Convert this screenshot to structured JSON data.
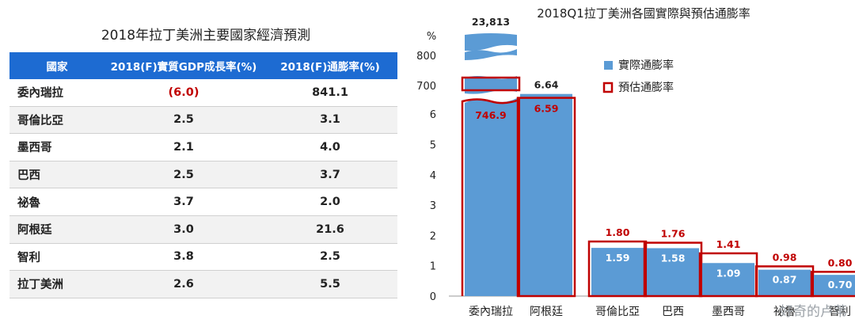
{
  "left_table": {
    "title": "2018年拉丁美洲主要國家經濟預測",
    "headers": [
      "國家",
      "2018(F)實質GDP成長率(%)",
      "2018(F)通膨率(%)"
    ],
    "rows": [
      {
        "country": "委內瑞拉",
        "gdp": "(6.0)",
        "inflation": "841.1"
      },
      {
        "country": "哥倫比亞",
        "gdp": "2.5",
        "inflation": "3.1"
      },
      {
        "country": "墨西哥",
        "gdp": "2.1",
        "inflation": "4.0"
      },
      {
        "country": "巴西",
        "gdp": "2.5",
        "inflation": "3.7"
      },
      {
        "country": "祕魯",
        "gdp": "3.7",
        "inflation": "2.0"
      },
      {
        "country": "阿根廷",
        "gdp": "3.0",
        "inflation": "21.6"
      },
      {
        "country": "智利",
        "gdp": "3.8",
        "inflation": "2.5"
      },
      {
        "country": "拉丁美洲",
        "gdp": "2.6",
        "inflation": "5.5"
      }
    ]
  },
  "chart_data": {
    "type": "bar",
    "title": "2018Q1拉丁美洲各國實際與預估通膨率",
    "ylabel": "%",
    "ylim": [
      0,
      800
    ],
    "axis_break": {
      "lower_max": 6,
      "upper_ticks": [
        700,
        800
      ]
    },
    "yticks": [
      "0",
      "1",
      "2",
      "3",
      "4",
      "5",
      "6",
      "700",
      "800"
    ],
    "categories": [
      "委內瑞拉",
      "阿根廷",
      "哥倫比亞",
      "巴西",
      "墨西哥",
      "祕魯",
      "智利"
    ],
    "series": [
      {
        "name": "實際通膨率",
        "values": [
          23813,
          6.64,
          1.59,
          1.58,
          1.09,
          0.87,
          0.7
        ],
        "labels": [
          "23,813",
          "6.64",
          "1.59",
          "1.58",
          "1.09",
          "0.87",
          "0.70"
        ]
      },
      {
        "name": "預估通膨率",
        "values": [
          746.9,
          6.59,
          1.8,
          1.76,
          1.41,
          0.98,
          0.8
        ],
        "labels": [
          "746.9",
          "6.59",
          "1.80",
          "1.76",
          "1.41",
          "0.98",
          "0.80"
        ]
      }
    ],
    "legend": [
      "實際通膨率",
      "預估通膨率"
    ],
    "colors": {
      "actual": "#5b9bd5",
      "forecast": "#c00000"
    }
  },
  "watermark": "好奇的卢苇"
}
